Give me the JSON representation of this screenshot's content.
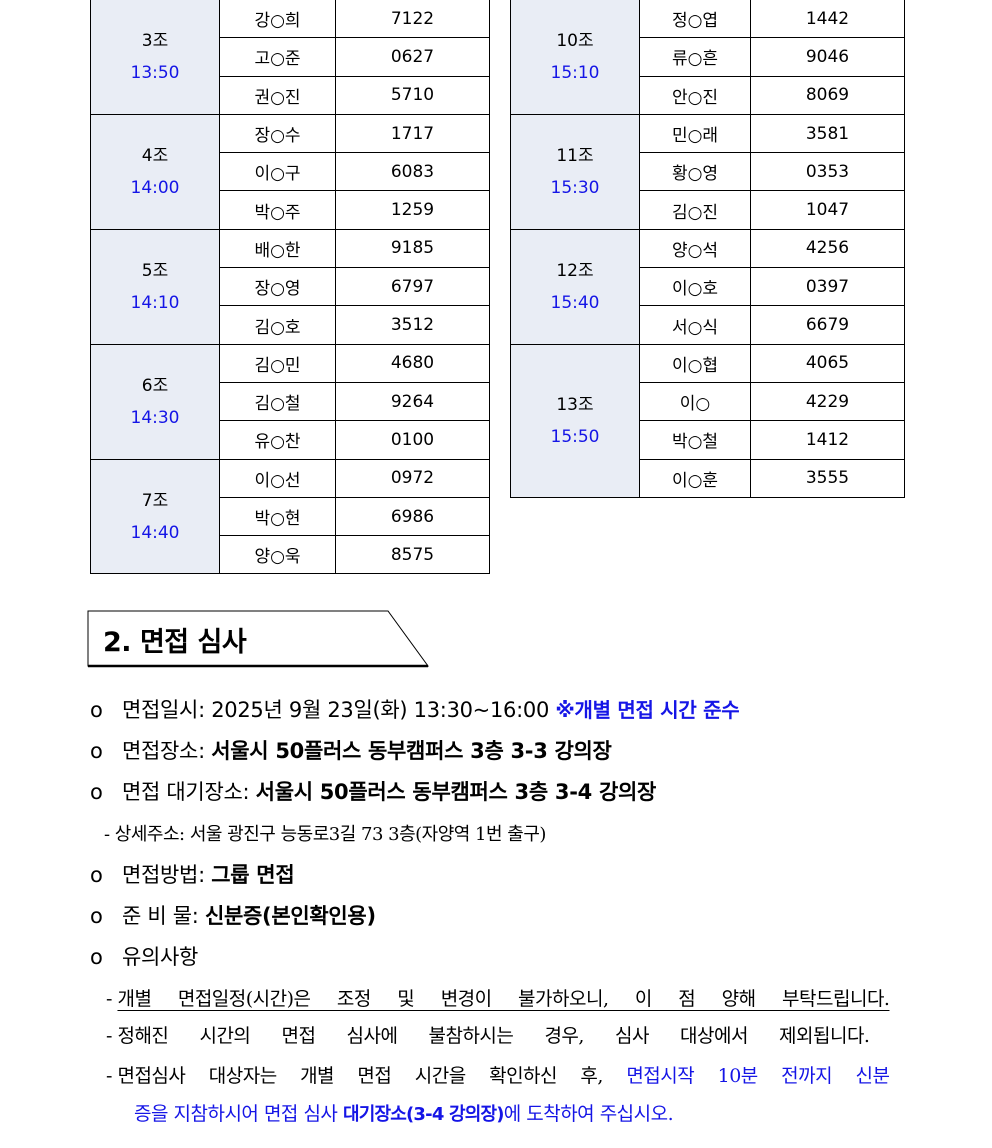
{
  "schedule_left": [
    {
      "group": "3조",
      "time": "13:50",
      "members": [
        [
          "강○희",
          "7122"
        ],
        [
          "고○준",
          "0627"
        ],
        [
          "권○진",
          "5710"
        ]
      ]
    },
    {
      "group": "4조",
      "time": "14:00",
      "members": [
        [
          "장○수",
          "1717"
        ],
        [
          "이○구",
          "6083"
        ],
        [
          "박○주",
          "1259"
        ]
      ]
    },
    {
      "group": "5조",
      "time": "14:10",
      "members": [
        [
          "배○한",
          "9185"
        ],
        [
          "장○영",
          "6797"
        ],
        [
          "김○호",
          "3512"
        ]
      ]
    },
    {
      "group": "6조",
      "time": "14:30",
      "members": [
        [
          "김○민",
          "4680"
        ],
        [
          "김○철",
          "9264"
        ],
        [
          "유○찬",
          "0100"
        ]
      ]
    },
    {
      "group": "7조",
      "time": "14:40",
      "members": [
        [
          "이○선",
          "0972"
        ],
        [
          "박○현",
          "6986"
        ],
        [
          "양○욱",
          "8575"
        ]
      ]
    }
  ],
  "schedule_right": [
    {
      "group": "10조",
      "time": "15:10",
      "members": [
        [
          "정○엽",
          "1442"
        ],
        [
          "류○흔",
          "9046"
        ],
        [
          "안○진",
          "8069"
        ]
      ]
    },
    {
      "group": "11조",
      "time": "15:30",
      "members": [
        [
          "민○래",
          "3581"
        ],
        [
          "황○영",
          "0353"
        ],
        [
          "김○진",
          "1047"
        ]
      ]
    },
    {
      "group": "12조",
      "time": "15:40",
      "members": [
        [
          "양○석",
          "4256"
        ],
        [
          "이○호",
          "0397"
        ],
        [
          "서○식",
          "6679"
        ]
      ]
    },
    {
      "group": "13조",
      "time": "15:50",
      "members": [
        [
          "이○협",
          "4065"
        ],
        [
          "이○",
          "4229"
        ],
        [
          "박○철",
          "1412"
        ],
        [
          "이○훈",
          "3555"
        ]
      ]
    }
  ],
  "section": {
    "title": "2. 면접 심사",
    "bullet": "o",
    "items": [
      {
        "label": "면접일시:",
        "value": "2025년 9월 23일(화) 13:30~16:00",
        "note": "※개별 면접 시간 준수"
      },
      {
        "label": "면접장소:",
        "value": "서울시 50플러스 동부캠퍼스 3층 3-3 강의장"
      },
      {
        "label": "면접 대기장소:",
        "value": "서울시 50플러스 동부캠퍼스 3층 3-4 강의장"
      },
      {
        "label": "면접방법:",
        "value": "그룹 면접"
      },
      {
        "label": "준 비 물:",
        "value": "신분증(본인확인용)"
      },
      {
        "label": "유의사항"
      }
    ],
    "address": "- 상세주소: 서울 광진구 능동로3길 73 3층(자양역 1번 출구)",
    "notes": {
      "dash": "-",
      "n1": "개별 면접일정(시간)은 조정 및 변경이 불가하오니, 이 점 양해 부탁드립니다.",
      "n2": "정해진 시간의 면접 심사에 불참하시는 경우, 심사 대상에서 제외됩니다.",
      "n3a": "면접심사 대상자는 개별 면접 시간을 확인하신 후,",
      "n3b": "면접시작 10분 전까지 신분",
      "n3c": "증을 지참하시어 면접 심사",
      "n3d": "대기장소(3-4 강의장)",
      "n3e": "에 도착하여 주십시오."
    }
  },
  "colors": {
    "time": "#1515e6",
    "group_bg": "#e9edf5",
    "note": "#1515e6"
  }
}
